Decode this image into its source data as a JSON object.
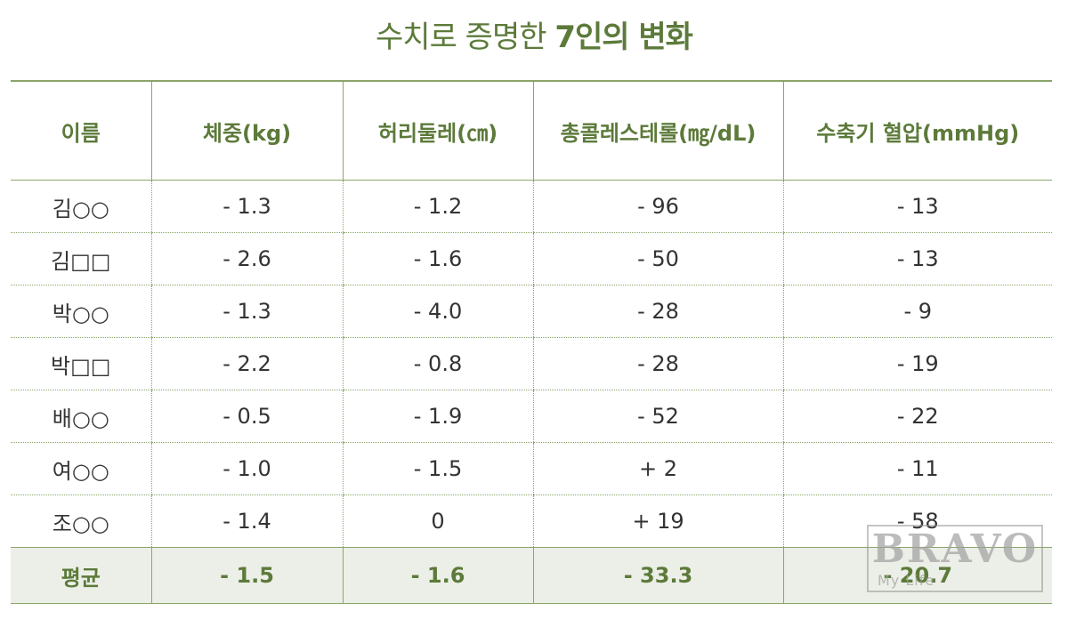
{
  "title": {
    "normal": "수치로 증명한 ",
    "bold": "7인의 변화"
  },
  "table": {
    "headers": [
      "이름",
      "체중(kg)",
      "허리둘레(㎝)",
      "총콜레스테롤(㎎/dL)",
      "수축기 혈압(mmHg)"
    ],
    "rows": [
      [
        "김○○",
        "- 1.3",
        "- 1.2",
        "- 96",
        "- 13"
      ],
      [
        "김□□",
        "- 2.6",
        "- 1.6",
        "- 50",
        "- 13"
      ],
      [
        "박○○",
        "- 1.3",
        "- 4.0",
        "- 28",
        "- 9"
      ],
      [
        "박□□",
        "- 2.2",
        "- 0.8",
        "- 28",
        "- 19"
      ],
      [
        "배○○",
        "- 0.5",
        "- 1.9",
        "- 52",
        "- 22"
      ],
      [
        "여○○",
        "- 1.0",
        "- 1.5",
        "+ 2",
        "- 11"
      ],
      [
        "조○○",
        "- 1.4",
        "0",
        "+ 19",
        "- 58"
      ]
    ],
    "average": [
      "평균",
      "- 1.5",
      "- 1.6",
      "- 33.3",
      "- 20.7"
    ]
  },
  "watermark": {
    "main": "BRAVO",
    "sub": "My Life"
  },
  "colors": {
    "accent": "#5c7a3a",
    "border": "#8aa56b",
    "average_bg": "#ecefe7"
  }
}
